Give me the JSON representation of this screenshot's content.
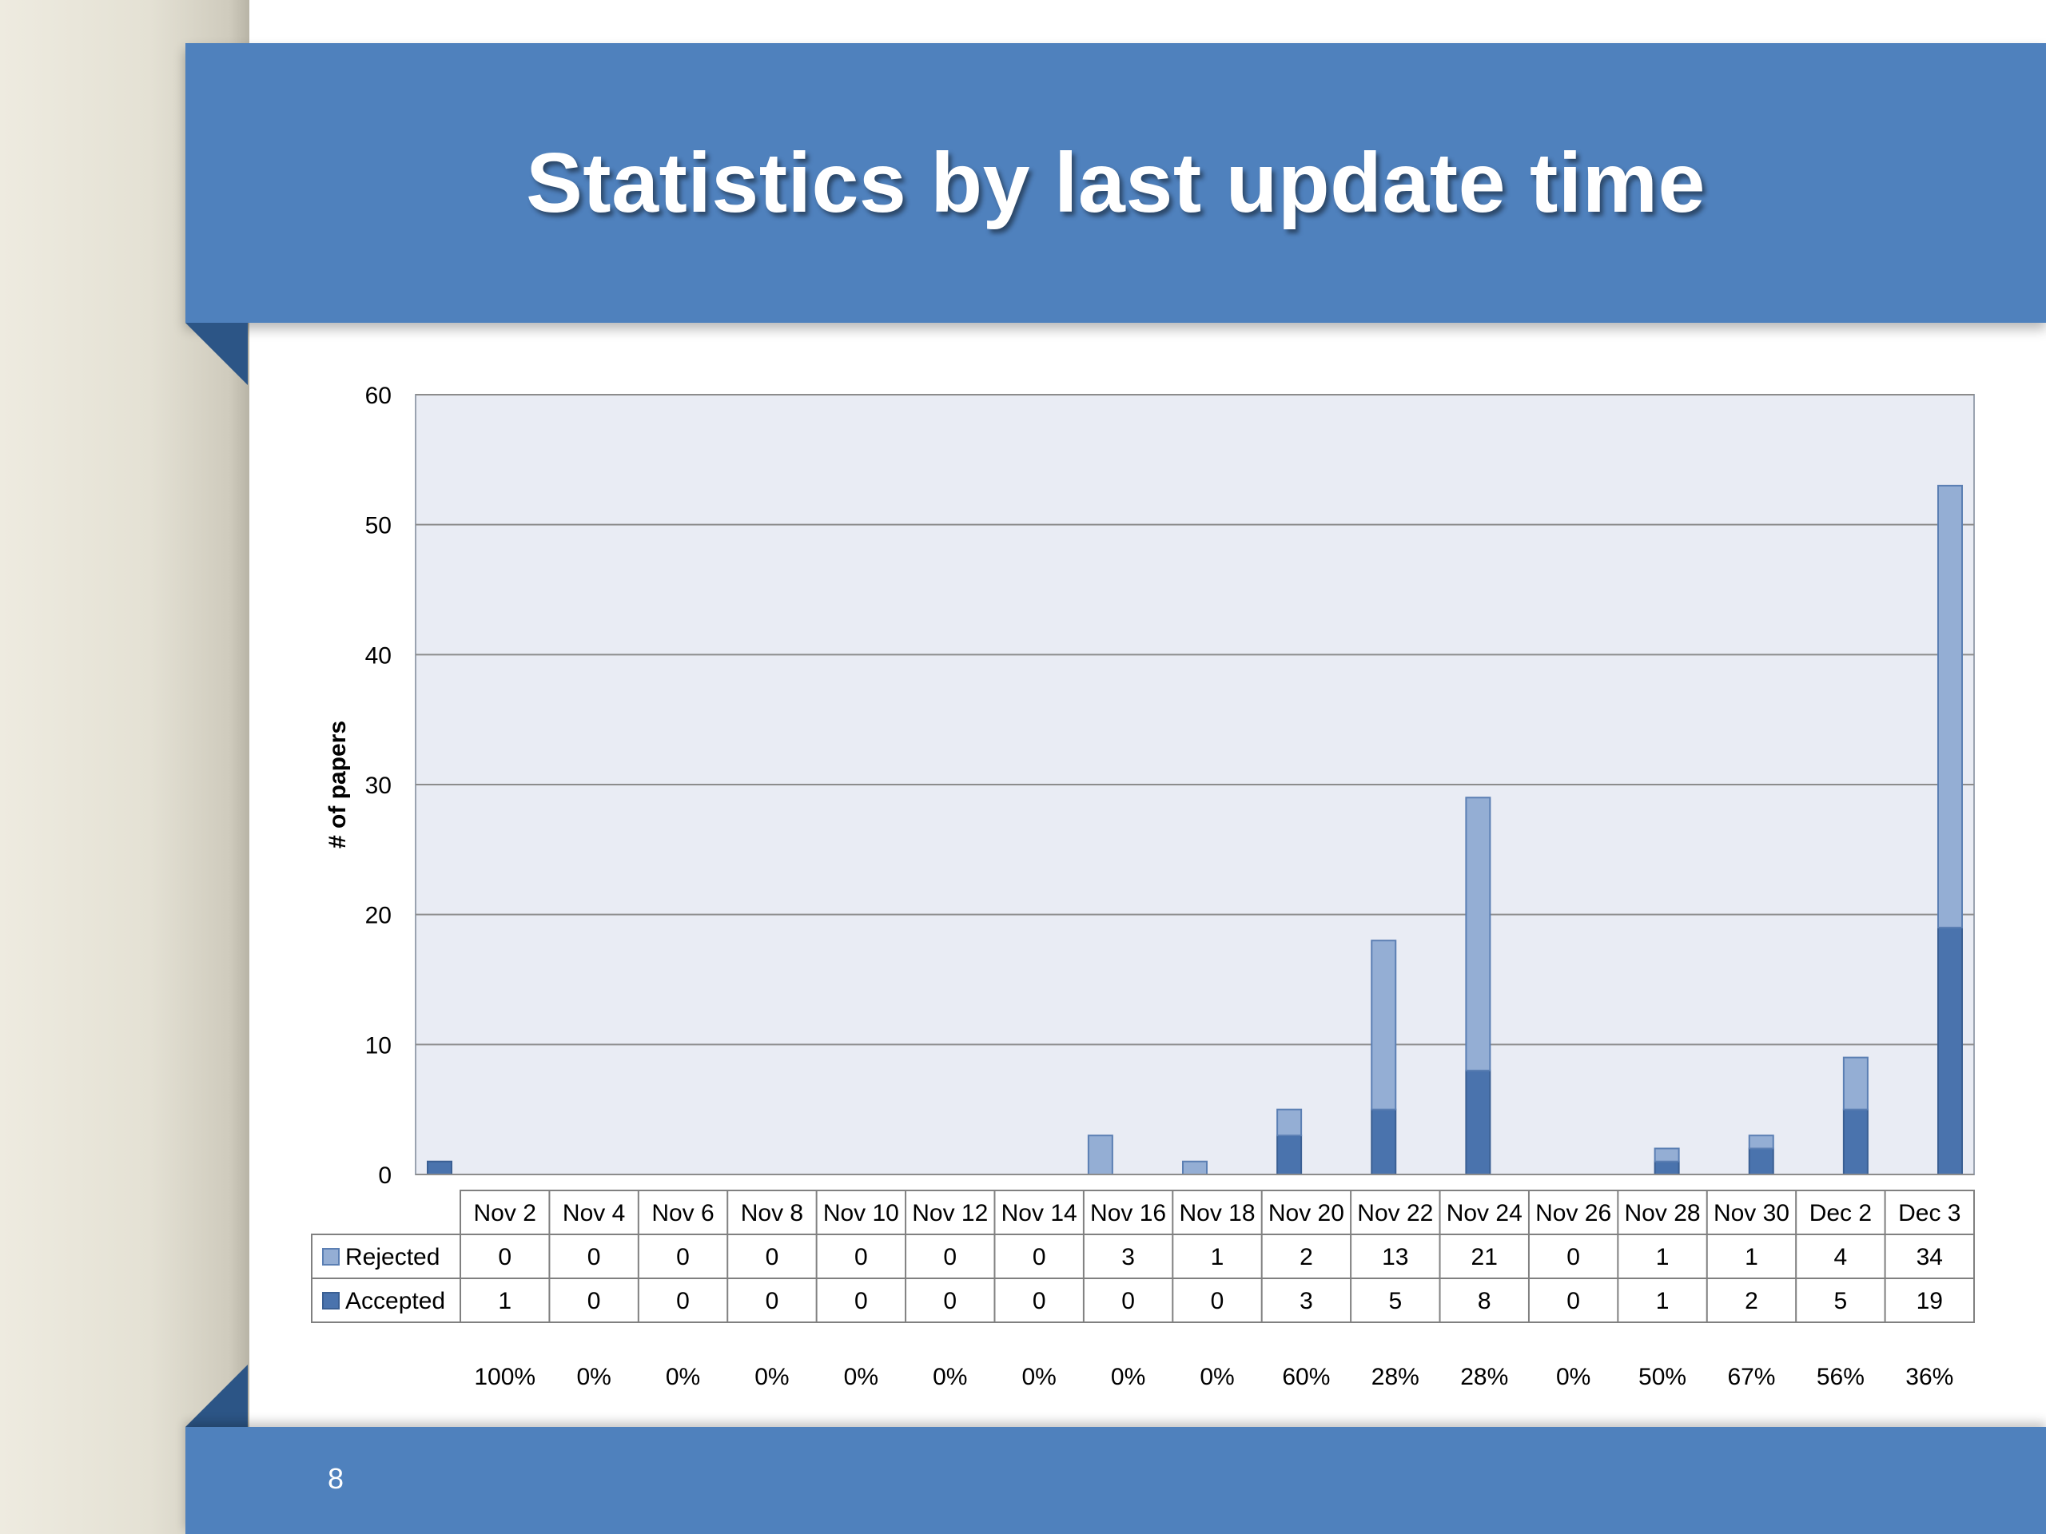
{
  "slide": {
    "title": "Statistics by last update time",
    "page_number": "8"
  },
  "colors": {
    "banner": "#4f81bd",
    "accepted": "#4a73ad",
    "rejected": "#94aed4",
    "plot_bg": "#e9ecf4"
  },
  "chart_data": {
    "type": "bar",
    "stacked": true,
    "title": "",
    "xlabel": "",
    "ylabel": "# of papers",
    "ylim": [
      0,
      60
    ],
    "yticks": [
      "0",
      "10",
      "20",
      "30",
      "40",
      "50",
      "60"
    ],
    "grid": true,
    "legend": "data table",
    "categories": [
      "Nov 2",
      "Nov 4",
      "Nov 6",
      "Nov 8",
      "Nov 10",
      "Nov 12",
      "Nov 14",
      "Nov 16",
      "Nov 18",
      "Nov 20",
      "Nov 22",
      "Nov 24",
      "Nov 26",
      "Nov 28",
      "Nov 30",
      "Dec 2",
      "Dec 3"
    ],
    "series": [
      {
        "name": "Rejected",
        "values": [
          0,
          0,
          0,
          0,
          0,
          0,
          0,
          3,
          1,
          2,
          13,
          21,
          0,
          1,
          1,
          4,
          34
        ]
      },
      {
        "name": "Accepted",
        "values": [
          1,
          0,
          0,
          0,
          0,
          0,
          0,
          0,
          0,
          3,
          5,
          8,
          0,
          1,
          2,
          5,
          19
        ]
      }
    ],
    "percentages": [
      "100%",
      "0%",
      "0%",
      "0%",
      "0%",
      "0%",
      "0%",
      "0%",
      "0%",
      "60%",
      "28%",
      "28%",
      "0%",
      "50%",
      "67%",
      "56%",
      "36%"
    ]
  }
}
